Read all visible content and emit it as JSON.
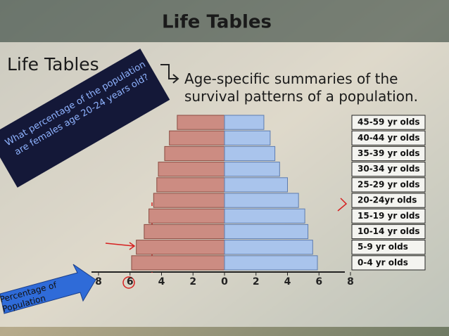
{
  "chart_data": {
    "type": "pyramid",
    "title": "Life Tables",
    "heading": "Life Tables",
    "subtitle": "Age-specific summaries of the survival patterns of a population.",
    "question": "What percentage of the population are females age 20-24 years old?",
    "xlabel": "Percentage of Population",
    "categories": [
      "0-4 yr olds",
      "5-9 yr olds",
      "10-14 yr olds",
      "15-19 yr olds",
      "20-24yr olds",
      "25-29 yr olds",
      "30-34 yr olds",
      "35-39 yr olds",
      "40-44 yr olds",
      "45-59 yr olds"
    ],
    "series": [
      {
        "color": "#cc8c82",
        "values": [
          5.9,
          5.6,
          5.1,
          4.8,
          4.5,
          4.3,
          4.2,
          3.8,
          3.5,
          3.0
        ]
      },
      {
        "color": "#a9c4ec",
        "values": [
          5.9,
          5.6,
          5.3,
          5.1,
          4.7,
          4.0,
          3.5,
          3.2,
          2.9,
          2.5
        ]
      }
    ],
    "xlim": [
      -8,
      8
    ],
    "xticks": [
      {
        "value": -8,
        "label": "8"
      },
      {
        "value": -6,
        "label": "6"
      },
      {
        "value": -4,
        "label": "4"
      },
      {
        "value": -2,
        "label": "2"
      },
      0,
      2,
      4,
      6,
      8
    ]
  }
}
